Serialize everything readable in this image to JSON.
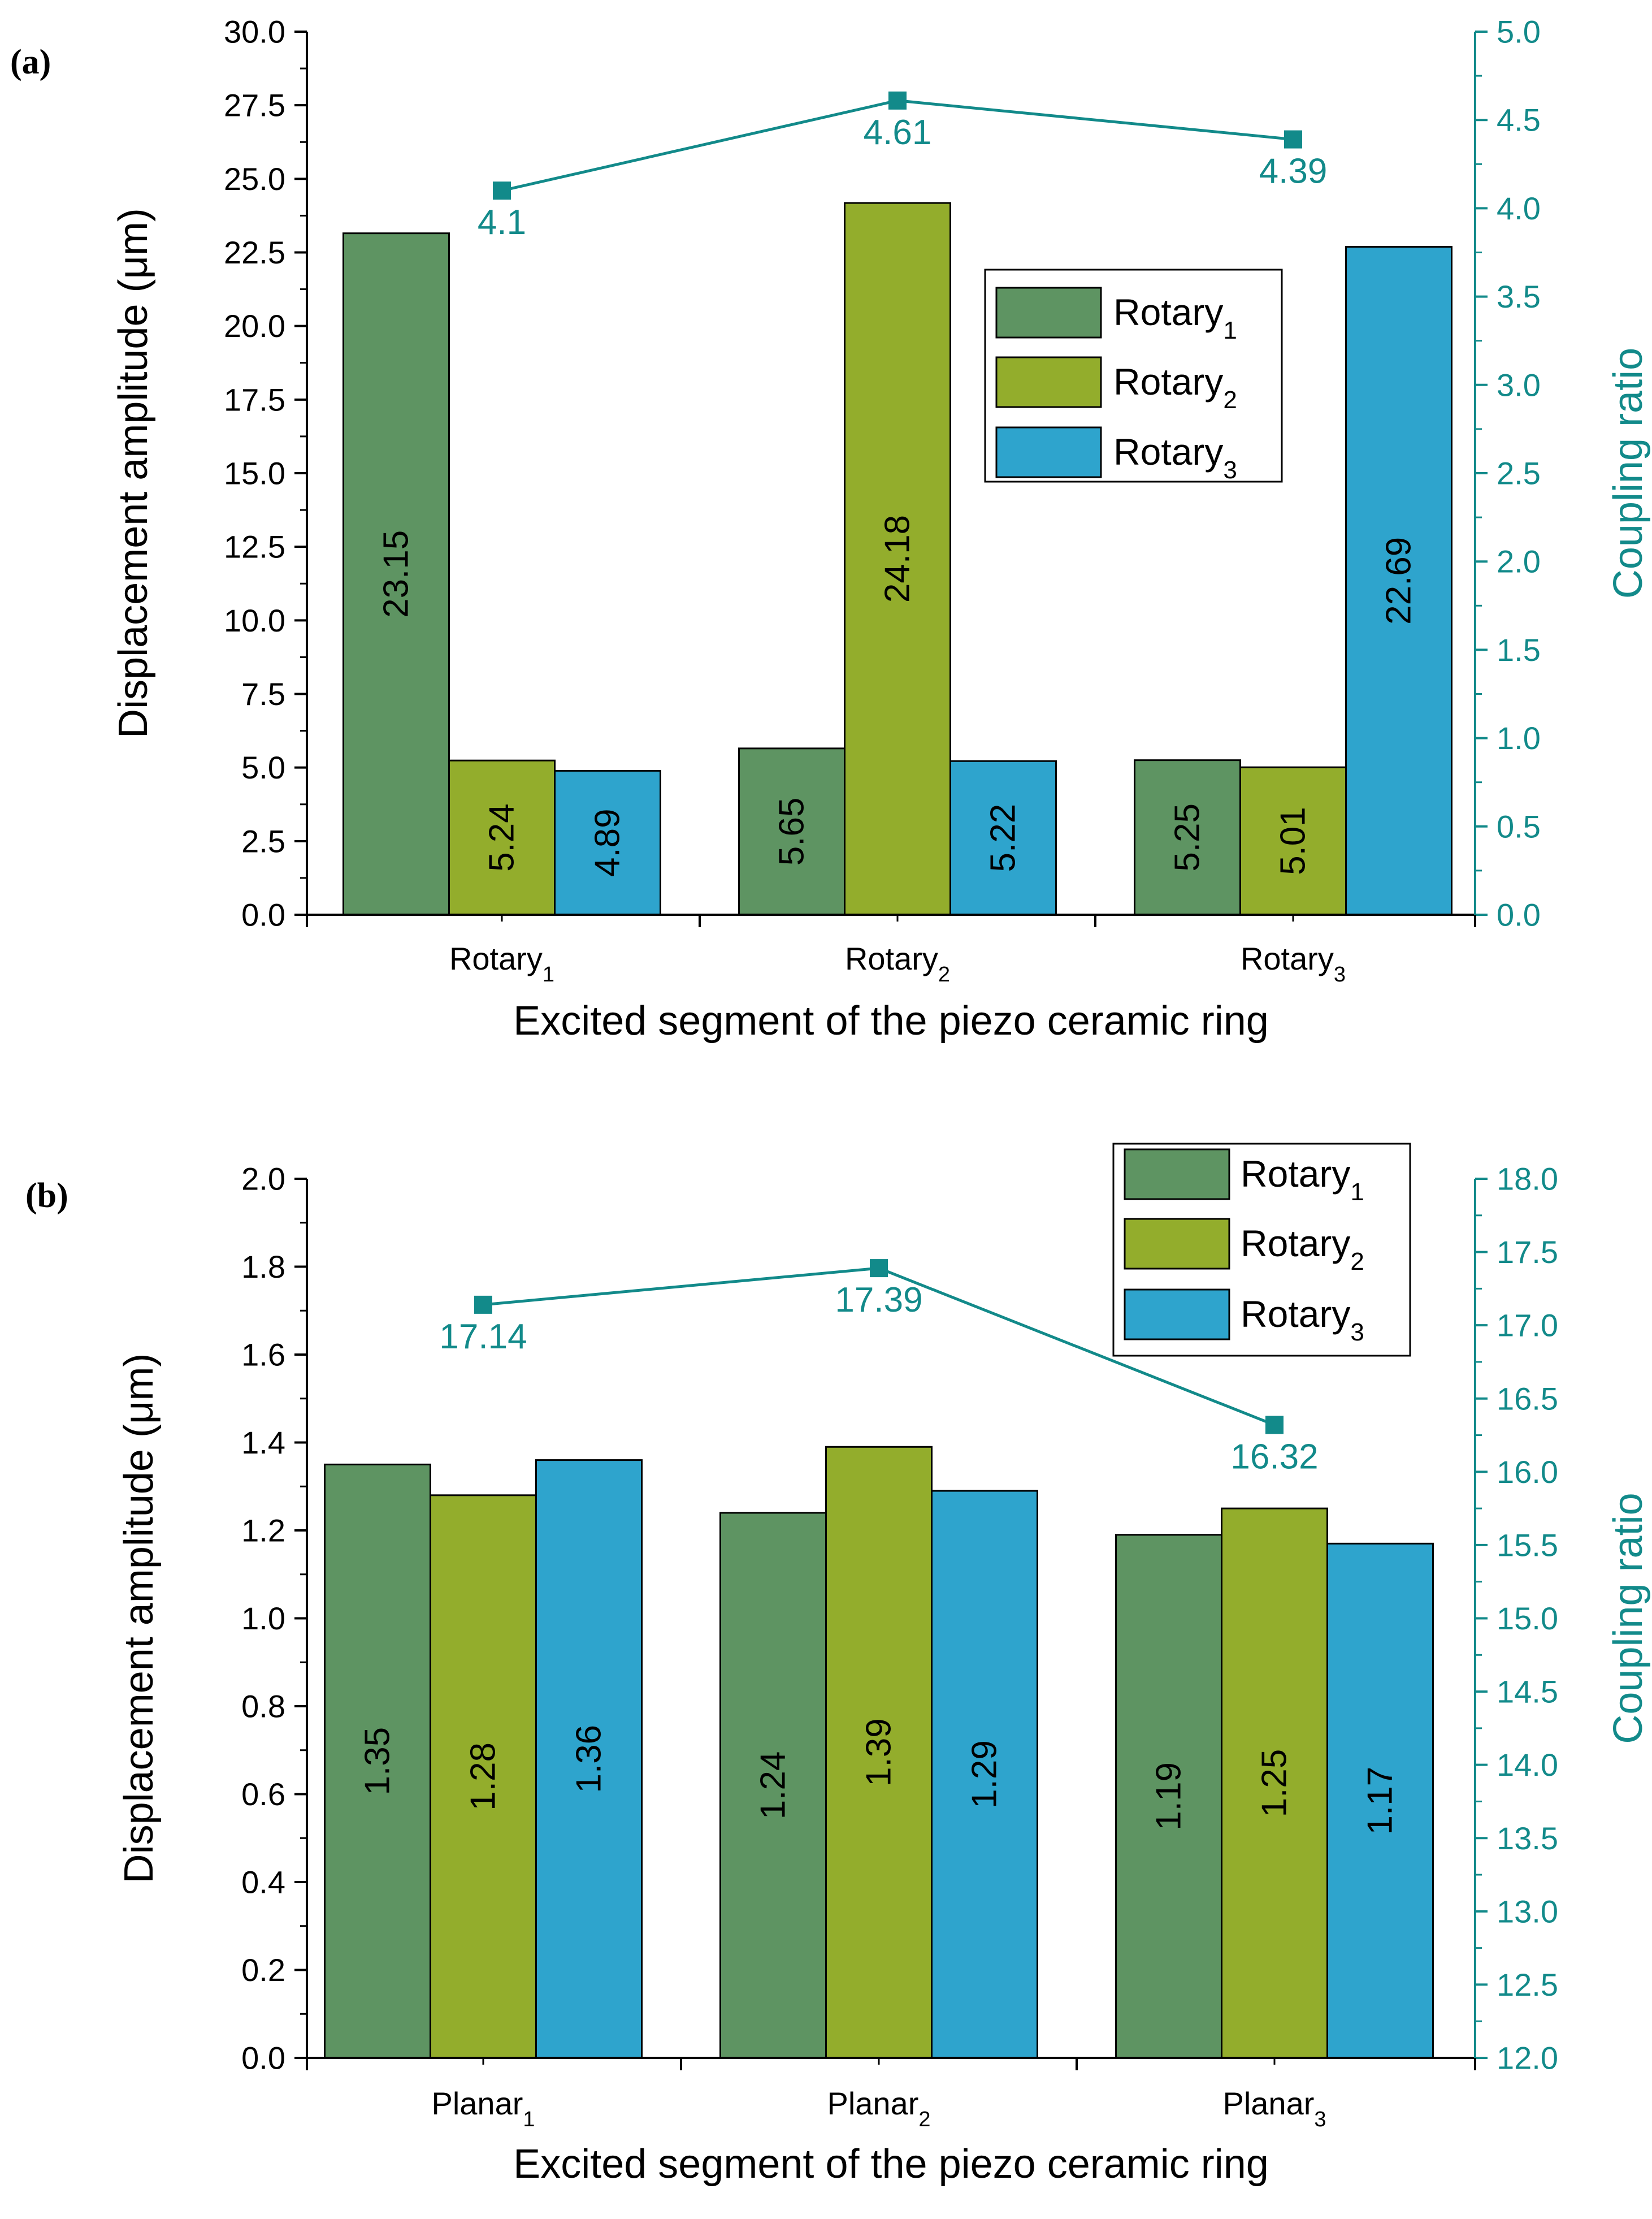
{
  "chart_data": [
    {
      "panel_label": "(a)",
      "type": "bar",
      "xlabel": "Excited segment of the piezo ceramic ring",
      "ylabel": "Displacement amplitude (μm)",
      "y2label": "Coupling ratio",
      "categories": [
        {
          "base": "Rotary",
          "sub": "1"
        },
        {
          "base": "Rotary",
          "sub": "2"
        },
        {
          "base": "Rotary",
          "sub": "3"
        }
      ],
      "series": [
        {
          "name": "Rotary",
          "sub": "1",
          "color": "#5e9462",
          "values": [
            23.15,
            5.65,
            5.25
          ],
          "labels": [
            "23.15",
            "5.65",
            "5.25"
          ]
        },
        {
          "name": "Rotary",
          "sub": "2",
          "color": "#93ad2c",
          "values": [
            5.24,
            24.18,
            5.01
          ],
          "labels": [
            "5.24",
            "24.18",
            "5.01"
          ]
        },
        {
          "name": "Rotary",
          "sub": "3",
          "color": "#2ea4cd",
          "values": [
            4.89,
            5.22,
            22.69
          ],
          "labels": [
            "4.89",
            "5.22",
            "22.69"
          ]
        }
      ],
      "coupling": {
        "color": "#128a8a",
        "values": [
          4.1,
          4.61,
          4.39
        ],
        "labels": [
          "4.1",
          "4.61",
          "4.39"
        ]
      },
      "ylim": [
        0,
        30
      ],
      "y_ticks": [
        "0.0",
        "2.5",
        "5.0",
        "7.5",
        "10.0",
        "12.5",
        "15.0",
        "17.5",
        "20.0",
        "22.5",
        "25.0",
        "27.5",
        "30.0"
      ],
      "y2lim": [
        0,
        5
      ],
      "y2_ticks": [
        "0.0",
        "0.5",
        "1.0",
        "1.5",
        "2.0",
        "2.5",
        "3.0",
        "3.5",
        "4.0",
        "4.5",
        "5.0"
      ],
      "legend": "center-right"
    },
    {
      "panel_label": "(b)",
      "type": "bar",
      "xlabel": "Excited segment of the piezo ceramic ring",
      "ylabel": "Displacement amplitude (μm)",
      "y2label": "Coupling ratio",
      "categories": [
        {
          "base": "Planar",
          "sub": "1"
        },
        {
          "base": "Planar",
          "sub": "2"
        },
        {
          "base": "Planar",
          "sub": "3"
        }
      ],
      "series": [
        {
          "name": "Rotary",
          "sub": "1",
          "color": "#5e9462",
          "values": [
            1.35,
            1.24,
            1.19
          ],
          "labels": [
            "1.35",
            "1.24",
            "1.19"
          ]
        },
        {
          "name": "Rotary",
          "sub": "2",
          "color": "#93ad2c",
          "values": [
            1.28,
            1.39,
            1.25
          ],
          "labels": [
            "1.28",
            "1.39",
            "1.25"
          ]
        },
        {
          "name": "Rotary",
          "sub": "3",
          "color": "#2ea4cd",
          "values": [
            1.36,
            1.29,
            1.17
          ],
          "labels": [
            "1.36",
            "1.29",
            "1.17"
          ]
        }
      ],
      "coupling": {
        "color": "#128a8a",
        "values": [
          17.14,
          17.39,
          16.32
        ],
        "labels": [
          "17.14",
          "17.39",
          "16.32"
        ]
      },
      "ylim": [
        0,
        2
      ],
      "y_ticks": [
        "0.0",
        "0.2",
        "0.4",
        "0.6",
        "0.8",
        "1.0",
        "1.2",
        "1.4",
        "1.6",
        "1.8",
        "2.0"
      ],
      "y2lim": [
        12,
        18
      ],
      "y2_ticks": [
        "12.0",
        "12.5",
        "13.0",
        "13.5",
        "14.0",
        "14.5",
        "15.0",
        "15.5",
        "16.0",
        "16.5",
        "17.0",
        "17.5",
        "18.0"
      ],
      "legend": "top-right"
    }
  ]
}
